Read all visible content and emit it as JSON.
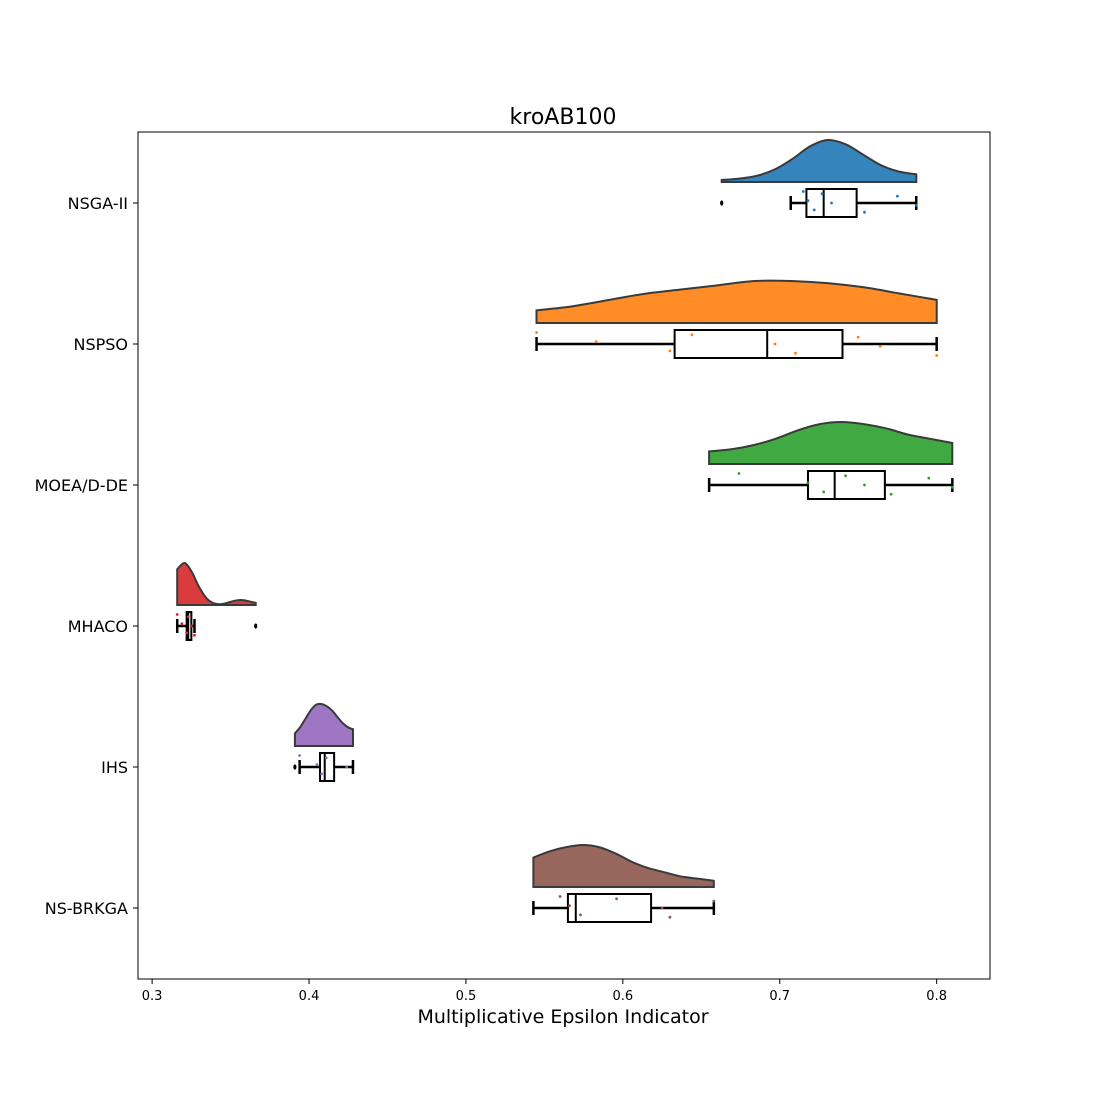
{
  "chart_data": {
    "type": "raincloud",
    "title": "kroAB100",
    "xlabel": "Multiplicative Epsilon Indicator",
    "ylabel": "",
    "xlim": [
      0.291,
      0.834
    ],
    "x_ticks": [
      "0.3",
      "0.4",
      "0.5",
      "0.6",
      "0.7",
      "0.8"
    ],
    "grid": false,
    "orientation": "horizontal",
    "series": [
      {
        "name": "NSGA-II",
        "color": "#1f77b4",
        "density_range": [
          0.663,
          0.787
        ],
        "density": [
          0.05,
          0.08,
          0.15,
          0.3,
          0.55,
          0.85,
          1.0,
          0.9,
          0.65,
          0.4,
          0.25,
          0.18
        ],
        "box": {
          "whisker_low": 0.707,
          "q1": 0.717,
          "median": 0.728,
          "q3": 0.749,
          "whisker_high": 0.787
        },
        "outliers": [
          0.663
        ],
        "points": [
          0.715,
          0.718,
          0.722,
          0.727,
          0.733,
          0.754,
          0.775,
          0.787
        ]
      },
      {
        "name": "NSPSO",
        "color": "#ff7f0e",
        "density_range": [
          0.545,
          0.8
        ],
        "density": [
          0.3,
          0.4,
          0.55,
          0.7,
          0.8,
          0.9,
          1.0,
          1.0,
          0.95,
          0.85,
          0.7,
          0.55
        ],
        "box": {
          "whisker_low": 0.545,
          "q1": 0.633,
          "median": 0.692,
          "q3": 0.74,
          "whisker_high": 0.8
        },
        "outliers": [],
        "points": [
          0.545,
          0.583,
          0.63,
          0.644,
          0.697,
          0.71,
          0.75,
          0.764,
          0.8
        ]
      },
      {
        "name": "MOEA/D-DE",
        "color": "#2ca02c",
        "density_range": [
          0.655,
          0.81
        ],
        "density": [
          0.3,
          0.35,
          0.45,
          0.6,
          0.8,
          0.95,
          1.0,
          0.95,
          0.85,
          0.7,
          0.6,
          0.5
        ],
        "box": {
          "whisker_low": 0.655,
          "q1": 0.718,
          "median": 0.735,
          "q3": 0.767,
          "whisker_high": 0.81
        },
        "outliers": [],
        "points": [
          0.674,
          0.718,
          0.728,
          0.742,
          0.754,
          0.771,
          0.795,
          0.81
        ]
      },
      {
        "name": "MHACO",
        "color": "#d62728",
        "density_range": [
          0.316,
          0.366
        ],
        "density": [
          0.85,
          1.0,
          0.8,
          0.45,
          0.18,
          0.05,
          0.02,
          0.05,
          0.1,
          0.12,
          0.09,
          0.05
        ],
        "box": {
          "whisker_low": 0.316,
          "q1": 0.322,
          "median": 0.323,
          "q3": 0.325,
          "whisker_high": 0.327
        },
        "outliers": [
          0.366
        ],
        "points": [
          0.316,
          0.319,
          0.322,
          0.323,
          0.325,
          0.327
        ]
      },
      {
        "name": "IHS",
        "color": "#9467bd",
        "density_range": [
          0.391,
          0.428
        ],
        "density": [
          0.3,
          0.45,
          0.65,
          0.85,
          0.98,
          1.0,
          0.95,
          0.85,
          0.7,
          0.55,
          0.45,
          0.4
        ],
        "box": {
          "whisker_low": 0.394,
          "q1": 0.407,
          "median": 0.41,
          "q3": 0.416,
          "whisker_high": 0.428
        },
        "outliers": [
          0.391
        ],
        "points": [
          0.394,
          0.405,
          0.408,
          0.411,
          0.424
        ]
      },
      {
        "name": "NS-BRKGA",
        "color": "#8c564b",
        "density_range": [
          0.543,
          0.658
        ],
        "density": [
          0.7,
          0.85,
          0.95,
          1.0,
          0.95,
          0.8,
          0.6,
          0.45,
          0.35,
          0.25,
          0.2,
          0.15
        ],
        "box": {
          "whisker_low": 0.543,
          "q1": 0.565,
          "median": 0.57,
          "q3": 0.618,
          "whisker_high": 0.658
        },
        "outliers": [],
        "points": [
          0.56,
          0.566,
          0.573,
          0.596,
          0.625,
          0.63,
          0.658
        ]
      }
    ]
  }
}
